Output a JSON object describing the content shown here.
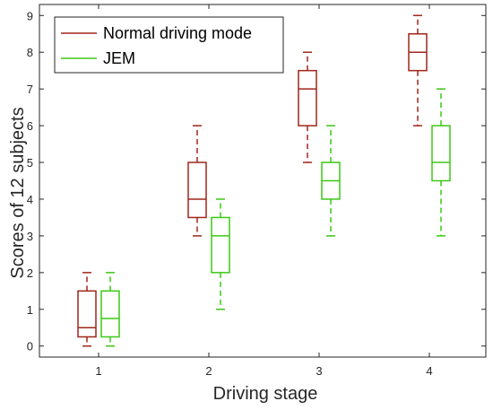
{
  "chart_data": {
    "type": "box",
    "xlabel": "Driving stage",
    "ylabel": "Scores of 12 subjects",
    "categories": [
      "1",
      "2",
      "3",
      "4"
    ],
    "ylim": [
      -0.3,
      9.3
    ],
    "yticks": [
      0,
      1,
      2,
      3,
      4,
      5,
      6,
      7,
      8,
      9
    ],
    "grid": false,
    "legend_position": "top-left",
    "series": [
      {
        "name": "Normal driving mode",
        "color": "#a0261a",
        "boxes": [
          {
            "min": 0,
            "q1": 0.25,
            "median": 0.5,
            "q3": 1.5,
            "max": 2
          },
          {
            "min": 3,
            "q1": 3.5,
            "median": 4,
            "q3": 5,
            "max": 6
          },
          {
            "min": 5,
            "q1": 6,
            "median": 7,
            "q3": 7.5,
            "max": 8
          },
          {
            "min": 6,
            "q1": 7.5,
            "median": 8,
            "q3": 8.5,
            "max": 9
          }
        ]
      },
      {
        "name": "JEM",
        "color": "#3cc814",
        "boxes": [
          {
            "min": 0,
            "q1": 0.25,
            "median": 0.75,
            "q3": 1.5,
            "max": 2
          },
          {
            "min": 1,
            "q1": 2,
            "median": 3,
            "q3": 3.5,
            "max": 4
          },
          {
            "min": 3,
            "q1": 4,
            "median": 4.5,
            "q3": 5,
            "max": 6
          },
          {
            "min": 3,
            "q1": 4.5,
            "median": 5,
            "q3": 6,
            "max": 7
          }
        ]
      }
    ]
  }
}
